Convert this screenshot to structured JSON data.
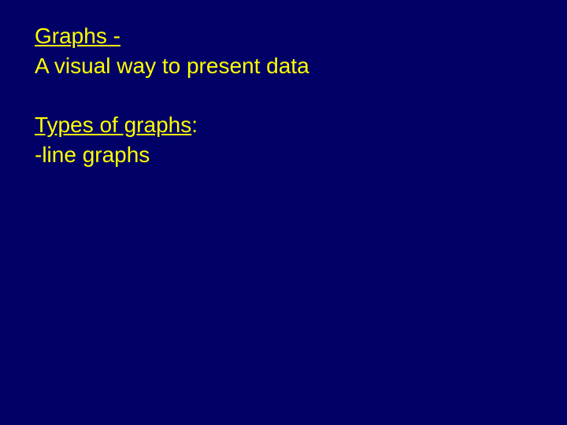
{
  "colors": {
    "background": "#000066",
    "text": "#ffff00"
  },
  "typography": {
    "font_family": "Arial, Helvetica, sans-serif",
    "font_size_pt": 21,
    "line_height": 1.3
  },
  "content": {
    "block1": {
      "heading": "Graphs -",
      "body": "A visual way to present data"
    },
    "block2": {
      "heading_part1": "Types of graphs",
      "heading_part2": ":",
      "item1": "-line graphs"
    }
  }
}
